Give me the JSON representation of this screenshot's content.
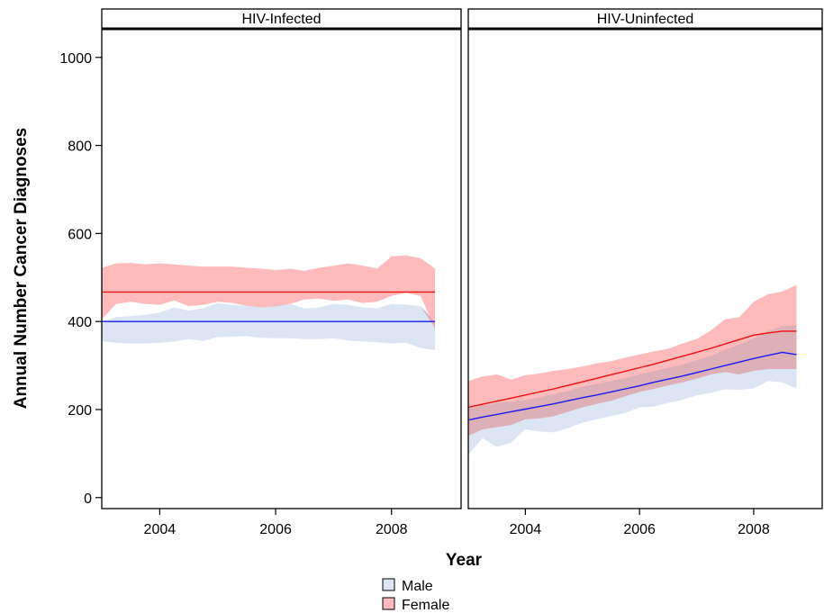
{
  "chart_data": {
    "type": "area",
    "xlabel": "Year",
    "ylabel": "Annual Number Cancer Diagnoses",
    "xlim": [
      2003.0,
      2009.2
    ],
    "ylim": [
      -25,
      1065
    ],
    "x_ticks": [
      "2004",
      "2006",
      "2008"
    ],
    "y_ticks": [
      "0",
      "200",
      "400",
      "600",
      "800",
      "1000"
    ],
    "grid": false,
    "legend_position": "bottom-center",
    "colors": {
      "male_band": "#dbe5f3",
      "female_band": "#ffbbbb",
      "overlap_band": "#ddb0b8",
      "male_line": "#1a1aee",
      "female_line": "#ee1111"
    },
    "legend": [
      {
        "label": "Male",
        "color": "#dbe5f3"
      },
      {
        "label": "Female",
        "color": "#ffbbbb"
      }
    ],
    "panels": [
      {
        "strip": "HIV-Infected",
        "x": [
          2003.0,
          2003.25,
          2003.5,
          2003.75,
          2004.0,
          2004.25,
          2004.5,
          2004.75,
          2005.0,
          2005.25,
          2005.5,
          2005.75,
          2006.0,
          2006.25,
          2006.5,
          2006.75,
          2007.0,
          2007.25,
          2007.5,
          2007.75,
          2008.0,
          2008.25,
          2008.5,
          2008.75
        ],
        "series": [
          {
            "name": "Male",
            "line": [
              400,
              400,
              400,
              400,
              400,
              400,
              400,
              400,
              400,
              400,
              400,
              400,
              400,
              400,
              400,
              400,
              400,
              400,
              400,
              400,
              400,
              400,
              400,
              400
            ],
            "lower": [
              355,
              352,
              350,
              350,
              352,
              355,
              360,
              356,
              365,
              365,
              367,
              363,
              362,
              362,
              360,
              360,
              362,
              357,
              355,
              353,
              350,
              352,
              340,
              335
            ],
            "upper": [
              400,
              410,
              412,
              415,
              420,
              432,
              425,
              430,
              442,
              438,
              436,
              432,
              436,
              440,
              430,
              432,
              440,
              438,
              432,
              430,
              440,
              438,
              435,
              400
            ]
          },
          {
            "name": "Female",
            "line": [
              467,
              467,
              467,
              467,
              467,
              467,
              467,
              467,
              467,
              467,
              467,
              467,
              467,
              467,
              467,
              467,
              467,
              467,
              467,
              467,
              467,
              467,
              467,
              467
            ],
            "lower": [
              405,
              440,
              445,
              440,
              438,
              448,
              435,
              438,
              445,
              442,
              436,
              432,
              435,
              440,
              450,
              452,
              447,
              450,
              442,
              445,
              458,
              465,
              458,
              385
            ],
            "upper": [
              522,
              532,
              533,
              530,
              532,
              530,
              527,
              525,
              525,
              525,
              522,
              520,
              517,
              520,
              515,
              522,
              527,
              532,
              527,
              520,
              548,
              550,
              544,
              520
            ]
          }
        ]
      },
      {
        "strip": "HIV-Uninfected",
        "x": [
          2003.0,
          2003.25,
          2003.5,
          2003.75,
          2004.0,
          2004.25,
          2004.5,
          2004.75,
          2005.0,
          2005.25,
          2005.5,
          2005.75,
          2006.0,
          2006.25,
          2006.5,
          2006.75,
          2007.0,
          2007.25,
          2007.5,
          2007.75,
          2008.0,
          2008.25,
          2008.5,
          2008.75
        ],
        "series": [
          {
            "name": "Male",
            "line": [
              176,
              183,
              189,
              195,
              201,
              207,
              213,
              220,
              227,
              233,
              240,
              247,
              254,
              262,
              269,
              276,
              284,
              292,
              300,
              308,
              316,
              323,
              330,
              325
            ],
            "lower": [
              97,
              135,
              115,
              125,
              155,
              150,
              148,
              158,
              170,
              178,
              185,
              192,
              205,
              207,
              215,
              222,
              232,
              238,
              246,
              245,
              248,
              265,
              262,
              248
            ],
            "upper": [
              205,
              210,
              215,
              218,
              222,
              228,
              235,
              242,
              252,
              258,
              265,
              272,
              280,
              287,
              295,
              302,
              312,
              322,
              336,
              348,
              362,
              378,
              390,
              392
            ]
          },
          {
            "name": "Female",
            "line": [
              205,
              212,
              219,
              226,
              233,
              240,
              247,
              255,
              263,
              271,
              279,
              287,
              295,
              303,
              312,
              321,
              330,
              339,
              349,
              359,
              369,
              374,
              378,
              378
            ],
            "lower": [
              140,
              155,
              160,
              165,
              178,
              180,
              185,
              195,
              205,
              213,
              220,
              230,
              240,
              247,
              255,
              262,
              270,
              280,
              285,
              280,
              288,
              292,
              292,
              292
            ],
            "upper": [
              265,
              275,
              280,
              268,
              278,
              282,
              288,
              292,
              298,
              305,
              310,
              318,
              325,
              332,
              338,
              350,
              360,
              380,
              405,
              410,
              445,
              462,
              468,
              483
            ]
          }
        ]
      }
    ]
  }
}
